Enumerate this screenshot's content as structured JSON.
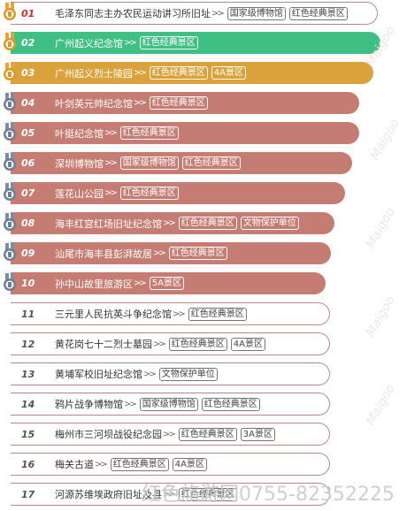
{
  "items": [
    {
      "rank": "01",
      "name": "毛泽东同志主办农民运动讲习所旧址",
      "tags": [
        "国家级博物馆",
        "红色经典景区"
      ],
      "color": "#ffffff",
      "border": true,
      "medal": "gold"
    },
    {
      "rank": "02",
      "name": "广州起义纪念馆",
      "tags": [
        "红色经典景区"
      ],
      "color": "#3fbf84",
      "medal": "gold"
    },
    {
      "rank": "03",
      "name": "广州起义烈士陵园",
      "tags": [
        "红色经典景区",
        "4A景区"
      ],
      "color": "#d9a23a",
      "medal": "gold"
    },
    {
      "rank": "04",
      "name": "叶剑英元帅纪念馆",
      "tags": [
        "红色经典景区"
      ],
      "color": "#c57d73",
      "medal": "silver"
    },
    {
      "rank": "05",
      "name": "叶挺纪念馆",
      "tags": [
        "红色经典景区"
      ],
      "color": "#c57d73",
      "medal": "silver"
    },
    {
      "rank": "06",
      "name": "深圳博物馆",
      "tags": [
        "国家级博物馆",
        "红色经典景区"
      ],
      "color": "#c57d73",
      "medal": "silver"
    },
    {
      "rank": "07",
      "name": "莲花山公园",
      "tags": [
        "红色经典景区"
      ],
      "color": "#c57d73",
      "medal": "silver"
    },
    {
      "rank": "08",
      "name": "海丰红宫红场旧址纪念馆",
      "tags": [
        "红色经典景区",
        "文物保护单位"
      ],
      "color": "#c57d73",
      "medal": "silver"
    },
    {
      "rank": "09",
      "name": "汕尾市海丰县彭湃故居",
      "tags": [
        "红色经典景区"
      ],
      "color": "#c57d73",
      "medal": "silver"
    },
    {
      "rank": "10",
      "name": "孙中山故里旅游区",
      "tags": [
        "5A景区"
      ],
      "color": "#c57d73",
      "medal": "silver"
    },
    {
      "rank": "11",
      "name": "三元里人民抗英斗争纪念馆",
      "tags": [
        "红色经典景区"
      ],
      "color": "#c57d73"
    },
    {
      "rank": "12",
      "name": "黄花岗七十二烈士墓园",
      "tags": [
        "红色经典景区",
        "4A景区"
      ],
      "color": "#c57d73"
    },
    {
      "rank": "13",
      "name": "黄埔军校旧址纪念馆",
      "tags": [
        "文物保护单位"
      ],
      "color": "#c57d73"
    },
    {
      "rank": "14",
      "name": "鸦片战争博物馆",
      "tags": [
        "国家级博物馆",
        "红色经典景区"
      ],
      "color": "#c57d73"
    },
    {
      "rank": "15",
      "name": "梅州市三河坝战役纪念园",
      "tags": [
        "红色经典景区",
        "3A景区"
      ],
      "color": "#c57d73"
    },
    {
      "rank": "16",
      "name": "梅关古道",
      "tags": [
        "红色经典景区",
        "4A景区"
      ],
      "color": "#c57d73"
    },
    {
      "rank": "17",
      "name": "河源苏维埃政府旧址及县",
      "tags": [
        "红色经典景区"
      ],
      "color": "#c57d73"
    }
  ],
  "watermark": {
    "text": "红色旅游网",
    "phone": "0755-82352225",
    "brand": "Maigoo"
  }
}
